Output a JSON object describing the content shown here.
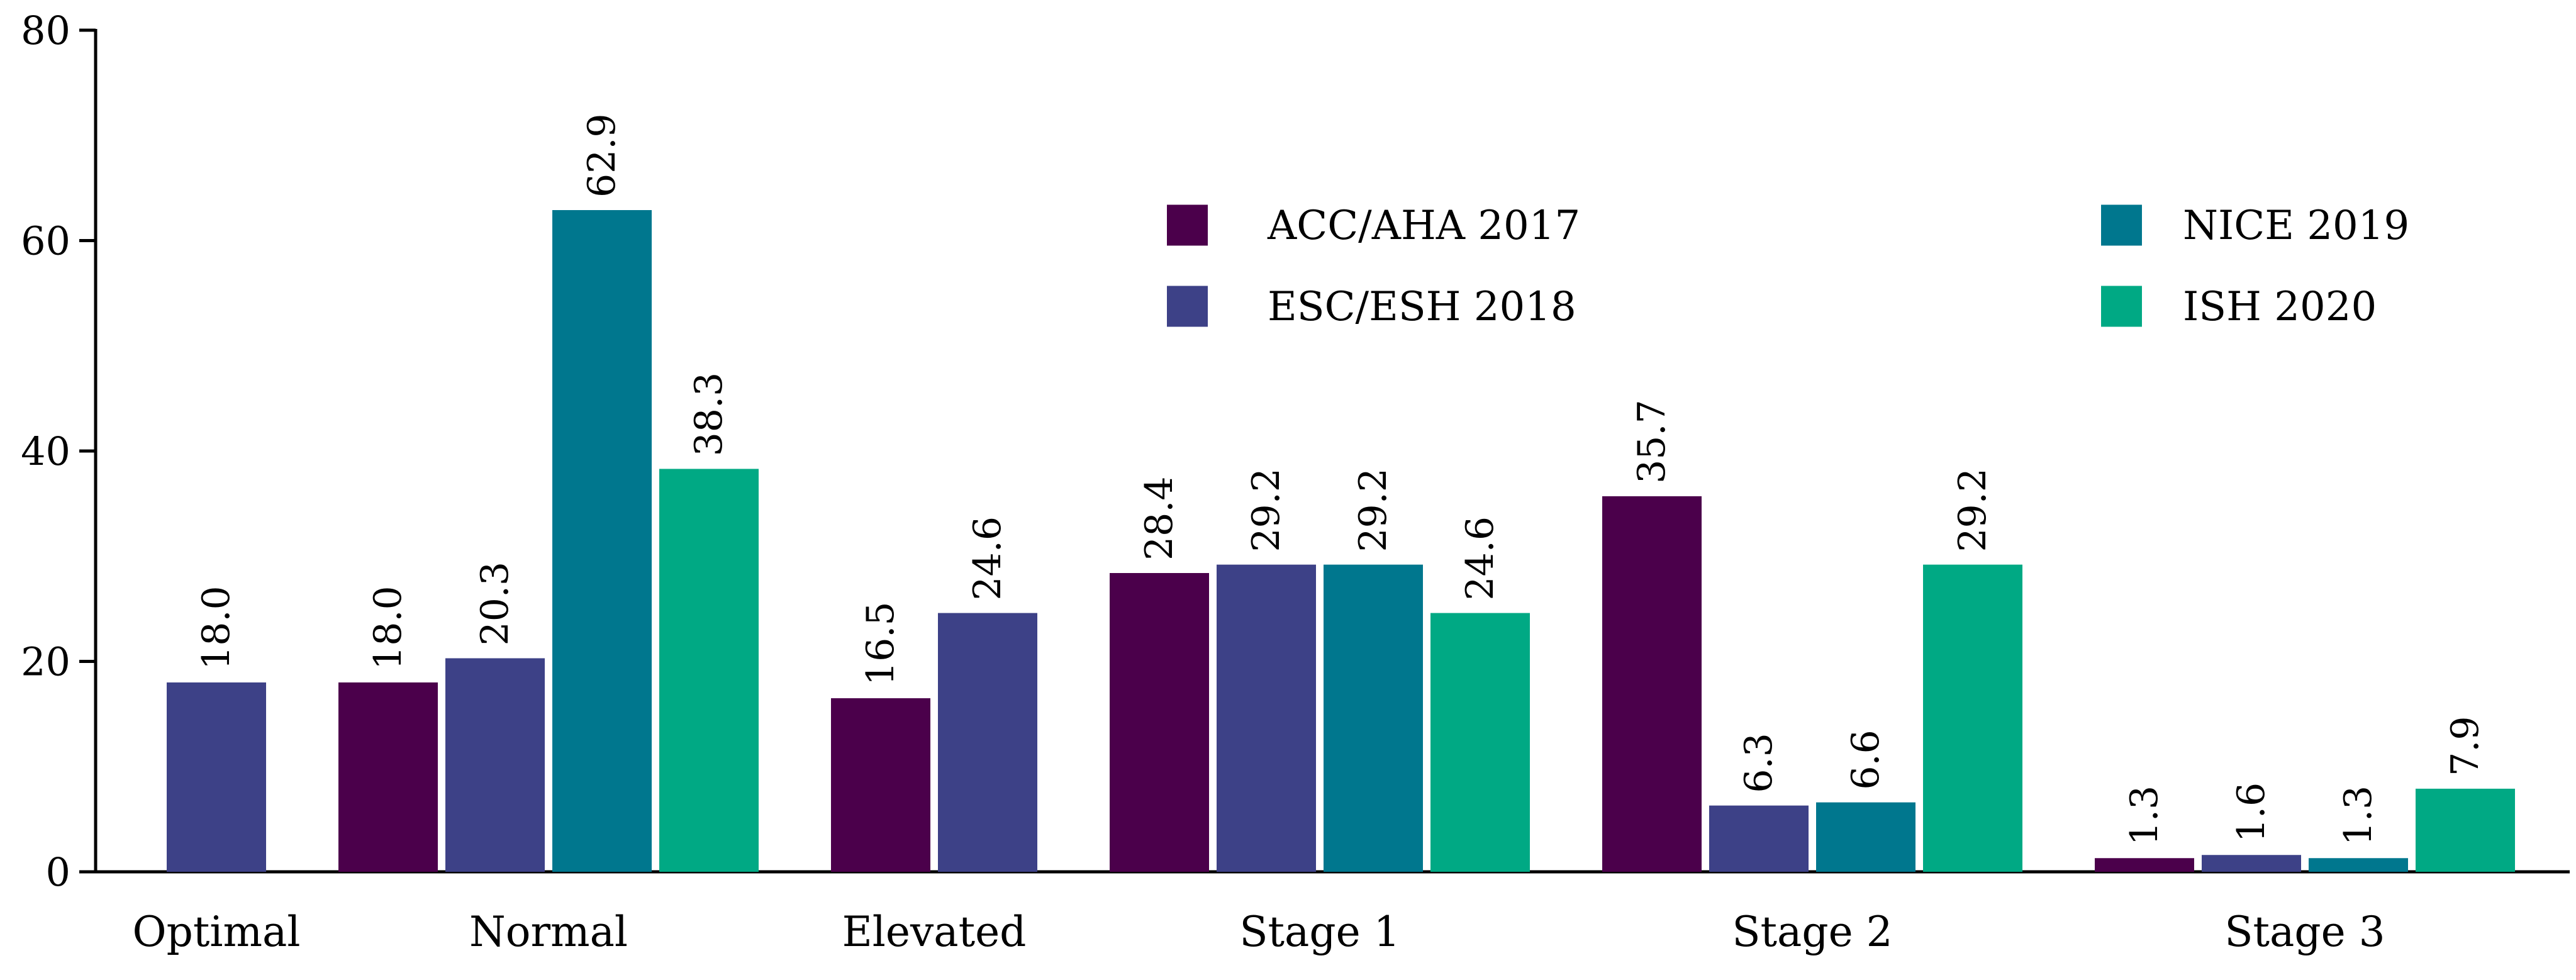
{
  "chart_data": {
    "type": "bar",
    "title": "",
    "xlabel": "",
    "ylabel": "",
    "ylim": [
      0,
      80
    ],
    "yticks": [
      0,
      20,
      40,
      60,
      80
    ],
    "grid": false,
    "legend_position": "top-center",
    "categories": [
      "Optimal",
      "Normal",
      "Elevated",
      "Stage 1",
      "Stage 2",
      "Stage 3"
    ],
    "series": [
      {
        "name": "ACC/AHA 2017",
        "color": "#4b004b",
        "values": [
          null,
          18.0,
          16.5,
          28.4,
          35.7,
          1.3
        ],
        "labels": [
          "",
          "18.0",
          "16.5",
          "28.4",
          "35.7",
          "1.3"
        ]
      },
      {
        "name": "ESC/ESH 2018",
        "color": "#3d4187",
        "values": [
          18.0,
          20.3,
          24.6,
          29.2,
          6.3,
          1.6
        ],
        "labels": [
          "18.0",
          "20.3",
          "24.6",
          "29.2",
          "6.3",
          "1.6"
        ]
      },
      {
        "name": "NICE 2019",
        "color": "#00778e",
        "values": [
          null,
          62.9,
          null,
          29.2,
          6.6,
          1.3
        ],
        "labels": [
          "",
          "62.9",
          "",
          "29.2",
          "6.6",
          "1.3"
        ]
      },
      {
        "name": "ISH 2020",
        "color": "#00a984",
        "values": [
          null,
          38.3,
          null,
          24.6,
          29.2,
          7.9
        ],
        "labels": [
          "",
          "38.3",
          "",
          "24.6",
          "29.2",
          "7.9"
        ]
      }
    ]
  }
}
